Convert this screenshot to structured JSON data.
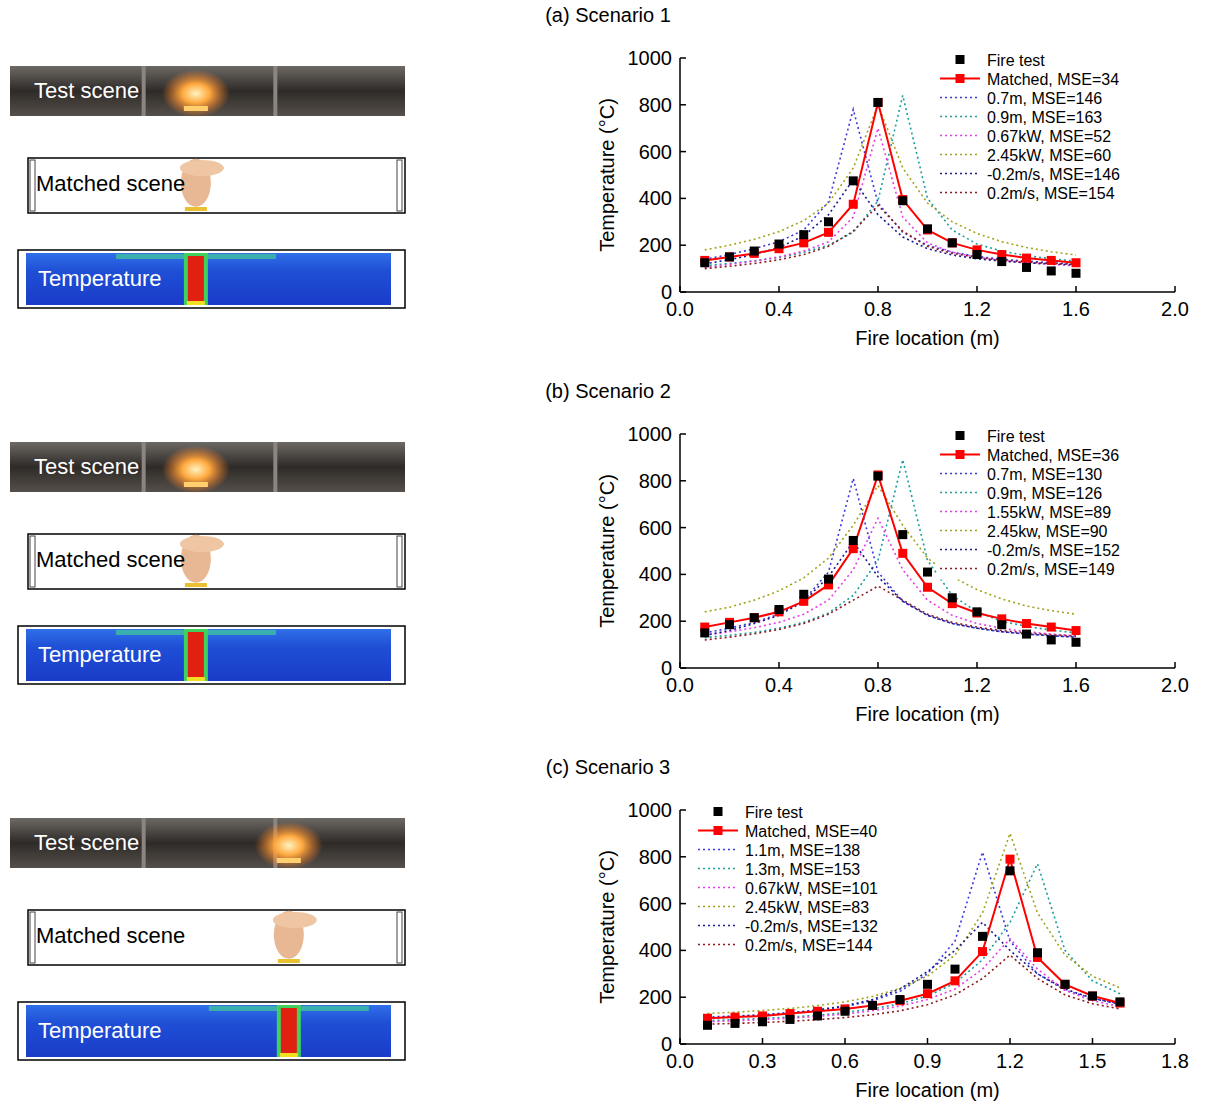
{
  "chart_data": [
    {
      "type": "line",
      "title": "(a) Scenario 1",
      "x_label": "Fire location (m)",
      "y_label": "Temperature (°C)",
      "annotations": [
        "Test scene",
        "Matched scene",
        "Temperature"
      ],
      "legend": "upper right",
      "xlim": [
        0,
        2
      ],
      "ylim": [
        0,
        1000
      ],
      "xticks": [
        {
          "value": 0,
          "label": "0.0"
        },
        0.4,
        0.8,
        1.2,
        1.6,
        {
          "value": 2,
          "label": "2.0"
        }
      ],
      "yticks": [
        0,
        200,
        400,
        600,
        800,
        1000
      ],
      "x": [
        0.1,
        0.2,
        0.3,
        0.4,
        0.5,
        0.6,
        0.7,
        0.8,
        0.9,
        1.0,
        1.1,
        1.2,
        1.3,
        1.4,
        1.5,
        1.6
      ],
      "series": [
        {
          "name": "Fire test",
          "color": "#000000",
          "marker": "square",
          "line_style": "none",
          "values": [
            125,
            150,
            175,
            205,
            245,
            300,
            475,
            810,
            390,
            270,
            210,
            160,
            130,
            105,
            90,
            80
          ]
        },
        {
          "name": "Matched, MSE=34",
          "color": "#ff0000",
          "marker": "square",
          "line_style": "solid",
          "values": [
            135,
            150,
            165,
            185,
            210,
            255,
            375,
            810,
            395,
            265,
            210,
            180,
            160,
            145,
            135,
            125
          ]
        },
        {
          "name": "0.7m, MSE=146",
          "color": "#3a3ae0",
          "marker": "none",
          "line_style": "dotted",
          "values": [
            140,
            160,
            185,
            215,
            265,
            385,
            780,
            380,
            255,
            200,
            170,
            152,
            140,
            132,
            125,
            120
          ]
        },
        {
          "name": "0.9m, MSE=163",
          "color": "#1a9e9e",
          "marker": "none",
          "line_style": "dotted",
          "values": [
            112,
            122,
            133,
            148,
            170,
            200,
            255,
            390,
            840,
            400,
            265,
            205,
            175,
            155,
            142,
            132
          ]
        },
        {
          "name": "0.67kW, MSE=52",
          "color": "#e83ee8",
          "marker": "none",
          "line_style": "dotted",
          "values": [
            105,
            118,
            132,
            150,
            175,
            215,
            320,
            700,
            320,
            210,
            170,
            148,
            135,
            125,
            118,
            112
          ]
        },
        {
          "name": "2.45kW, MSE=60",
          "color": "#a3a31a",
          "marker": "none",
          "line_style": "dotted",
          "values": [
            180,
            200,
            225,
            258,
            305,
            380,
            530,
            800,
            530,
            380,
            300,
            250,
            215,
            190,
            172,
            158
          ]
        },
        {
          "name": "-0.2m/s, MSE=146",
          "color": "#1a1a8c",
          "marker": "none",
          "line_style": "dotted",
          "values": [
            120,
            138,
            160,
            190,
            240,
            330,
            480,
            330,
            235,
            185,
            158,
            142,
            132,
            125,
            120,
            116
          ]
        },
        {
          "name": "0.2m/s, MSE=154",
          "color": "#8c1a1a",
          "marker": "none",
          "line_style": "dotted",
          "values": [
            100,
            110,
            122,
            138,
            160,
            195,
            260,
            370,
            260,
            195,
            165,
            148,
            136,
            128,
            122,
            118
          ]
        }
      ]
    },
    {
      "type": "line",
      "title": "(b) Scenario 2",
      "x_label": "Fire location (m)",
      "y_label": "Temperature (°C)",
      "annotations": [
        "Test scene",
        "Matched scene",
        "Temperature"
      ],
      "legend": "upper right",
      "xlim": [
        0,
        2
      ],
      "ylim": [
        0,
        1000
      ],
      "xticks": [
        {
          "value": 0,
          "label": "0.0"
        },
        0.4,
        0.8,
        1.2,
        1.6,
        {
          "value": 2,
          "label": "2.0"
        }
      ],
      "yticks": [
        0,
        200,
        400,
        600,
        800,
        1000
      ],
      "x": [
        0.1,
        0.2,
        0.3,
        0.4,
        0.5,
        0.6,
        0.7,
        0.8,
        0.9,
        1.0,
        1.1,
        1.2,
        1.3,
        1.4,
        1.5,
        1.6
      ],
      "series": [
        {
          "name": "Fire test",
          "color": "#000000",
          "marker": "square",
          "line_style": "none",
          "values": [
            150,
            185,
            215,
            250,
            315,
            380,
            545,
            820,
            570,
            410,
            300,
            240,
            185,
            145,
            120,
            110
          ]
        },
        {
          "name": "Matched, MSE=36",
          "color": "#ff0000",
          "marker": "square",
          "line_style": "solid",
          "values": [
            175,
            195,
            215,
            240,
            285,
            355,
            510,
            825,
            490,
            345,
            275,
            235,
            210,
            190,
            175,
            160
          ]
        },
        {
          "name": "0.7m, MSE=130",
          "color": "#3a3ae0",
          "marker": "none",
          "line_style": "dotted",
          "values": [
            150,
            170,
            195,
            230,
            290,
            410,
            810,
            410,
            285,
            225,
            190,
            170,
            155,
            145,
            138,
            132
          ]
        },
        {
          "name": "0.9m, MSE=126",
          "color": "#1a9e9e",
          "marker": "none",
          "line_style": "dotted",
          "values": [
            130,
            140,
            152,
            170,
            195,
            235,
            310,
            460,
            890,
            460,
            310,
            240,
            200,
            178,
            162,
            150
          ]
        },
        {
          "name": "1.55kW, MSE=89",
          "color": "#e83ee8",
          "marker": "none",
          "line_style": "dotted",
          "values": [
            140,
            155,
            172,
            195,
            230,
            290,
            420,
            640,
            420,
            290,
            225,
            190,
            170,
            155,
            145,
            138
          ]
        },
        {
          "name": "2.45kw, MSE=90",
          "color": "#a3a31a",
          "marker": "none",
          "line_style": "dotted",
          "values": [
            240,
            260,
            290,
            330,
            385,
            470,
            610,
            780,
            610,
            470,
            390,
            335,
            295,
            265,
            245,
            230
          ]
        },
        {
          "name": "-0.2m/s, MSE=152",
          "color": "#1a1a8c",
          "marker": "none",
          "line_style": "dotted",
          "values": [
            140,
            160,
            190,
            225,
            285,
            390,
            540,
            390,
            285,
            225,
            190,
            170,
            155,
            145,
            138,
            132
          ]
        },
        {
          "name": "0.2m/s, MSE=149",
          "color": "#8c1a1a",
          "marker": "none",
          "line_style": "dotted",
          "values": [
            120,
            132,
            146,
            165,
            190,
            230,
            290,
            350,
            290,
            230,
            195,
            175,
            160,
            150,
            142,
            136
          ]
        }
      ]
    },
    {
      "type": "line",
      "title": "(c) Scenario 3",
      "x_label": "Fire location (m)",
      "y_label": "Temperature (°C)",
      "annotations": [
        "Test scene",
        "Matched scene",
        "Temperature"
      ],
      "legend": "upper left",
      "xlim": [
        0,
        1.8
      ],
      "ylim": [
        0,
        1000
      ],
      "xticks": [
        {
          "value": 0,
          "label": "0.0"
        },
        0.3,
        0.6,
        0.9,
        1.2,
        1.5,
        1.8
      ],
      "yticks": [
        0,
        200,
        400,
        600,
        800,
        1000
      ],
      "x": [
        0.1,
        0.2,
        0.3,
        0.4,
        0.5,
        0.6,
        0.7,
        0.8,
        0.9,
        1.0,
        1.1,
        1.2,
        1.3,
        1.4,
        1.5,
        1.6
      ],
      "series": [
        {
          "name": "Fire test",
          "color": "#000000",
          "marker": "square",
          "line_style": "none",
          "values": [
            80,
            88,
            95,
            105,
            120,
            140,
            165,
            190,
            255,
            320,
            460,
            740,
            390,
            255,
            205,
            180
          ]
        },
        {
          "name": "Matched, MSE=40",
          "color": "#ff0000",
          "marker": "square",
          "line_style": "solid",
          "values": [
            110,
            115,
            120,
            130,
            140,
            150,
            165,
            185,
            215,
            270,
            395,
            790,
            370,
            255,
            205,
            175
          ]
        },
        {
          "name": "1.1m, MSE=138",
          "color": "#3a3ae0",
          "marker": "none",
          "line_style": "dotted",
          "values": [
            115,
            120,
            126,
            134,
            145,
            160,
            185,
            225,
            300,
            440,
            820,
            440,
            300,
            230,
            195,
            172
          ]
        },
        {
          "name": "1.3m, MSE=153",
          "color": "#1a9e9e",
          "marker": "none",
          "line_style": "dotted",
          "values": [
            100,
            104,
            109,
            115,
            123,
            134,
            150,
            172,
            205,
            260,
            360,
            520,
            770,
            400,
            270,
            215
          ]
        },
        {
          "name": "0.67kW, MSE=101",
          "color": "#e83ee8",
          "marker": "none",
          "line_style": "dotted",
          "values": [
            95,
            99,
            104,
            110,
            118,
            128,
            142,
            162,
            190,
            235,
            320,
            450,
            320,
            230,
            185,
            160
          ]
        },
        {
          "name": "2.45kW, MSE=83",
          "color": "#a3a31a",
          "marker": "none",
          "line_style": "dotted",
          "values": [
            130,
            136,
            143,
            152,
            164,
            180,
            203,
            238,
            290,
            380,
            560,
            900,
            560,
            380,
            290,
            240
          ]
        },
        {
          "name": "-0.2m/s, MSE=132",
          "color": "#1a1a8c",
          "marker": "none",
          "line_style": "dotted",
          "values": [
            110,
            116,
            123,
            132,
            145,
            163,
            190,
            235,
            310,
            400,
            520,
            400,
            300,
            235,
            195,
            170
          ]
        },
        {
          "name": "0.2m/s, MSE=144",
          "color": "#8c1a1a",
          "marker": "none",
          "line_style": "dotted",
          "values": [
            85,
            88,
            92,
            97,
            104,
            113,
            125,
            142,
            168,
            210,
            280,
            380,
            280,
            210,
            172,
            150
          ]
        }
      ]
    }
  ]
}
